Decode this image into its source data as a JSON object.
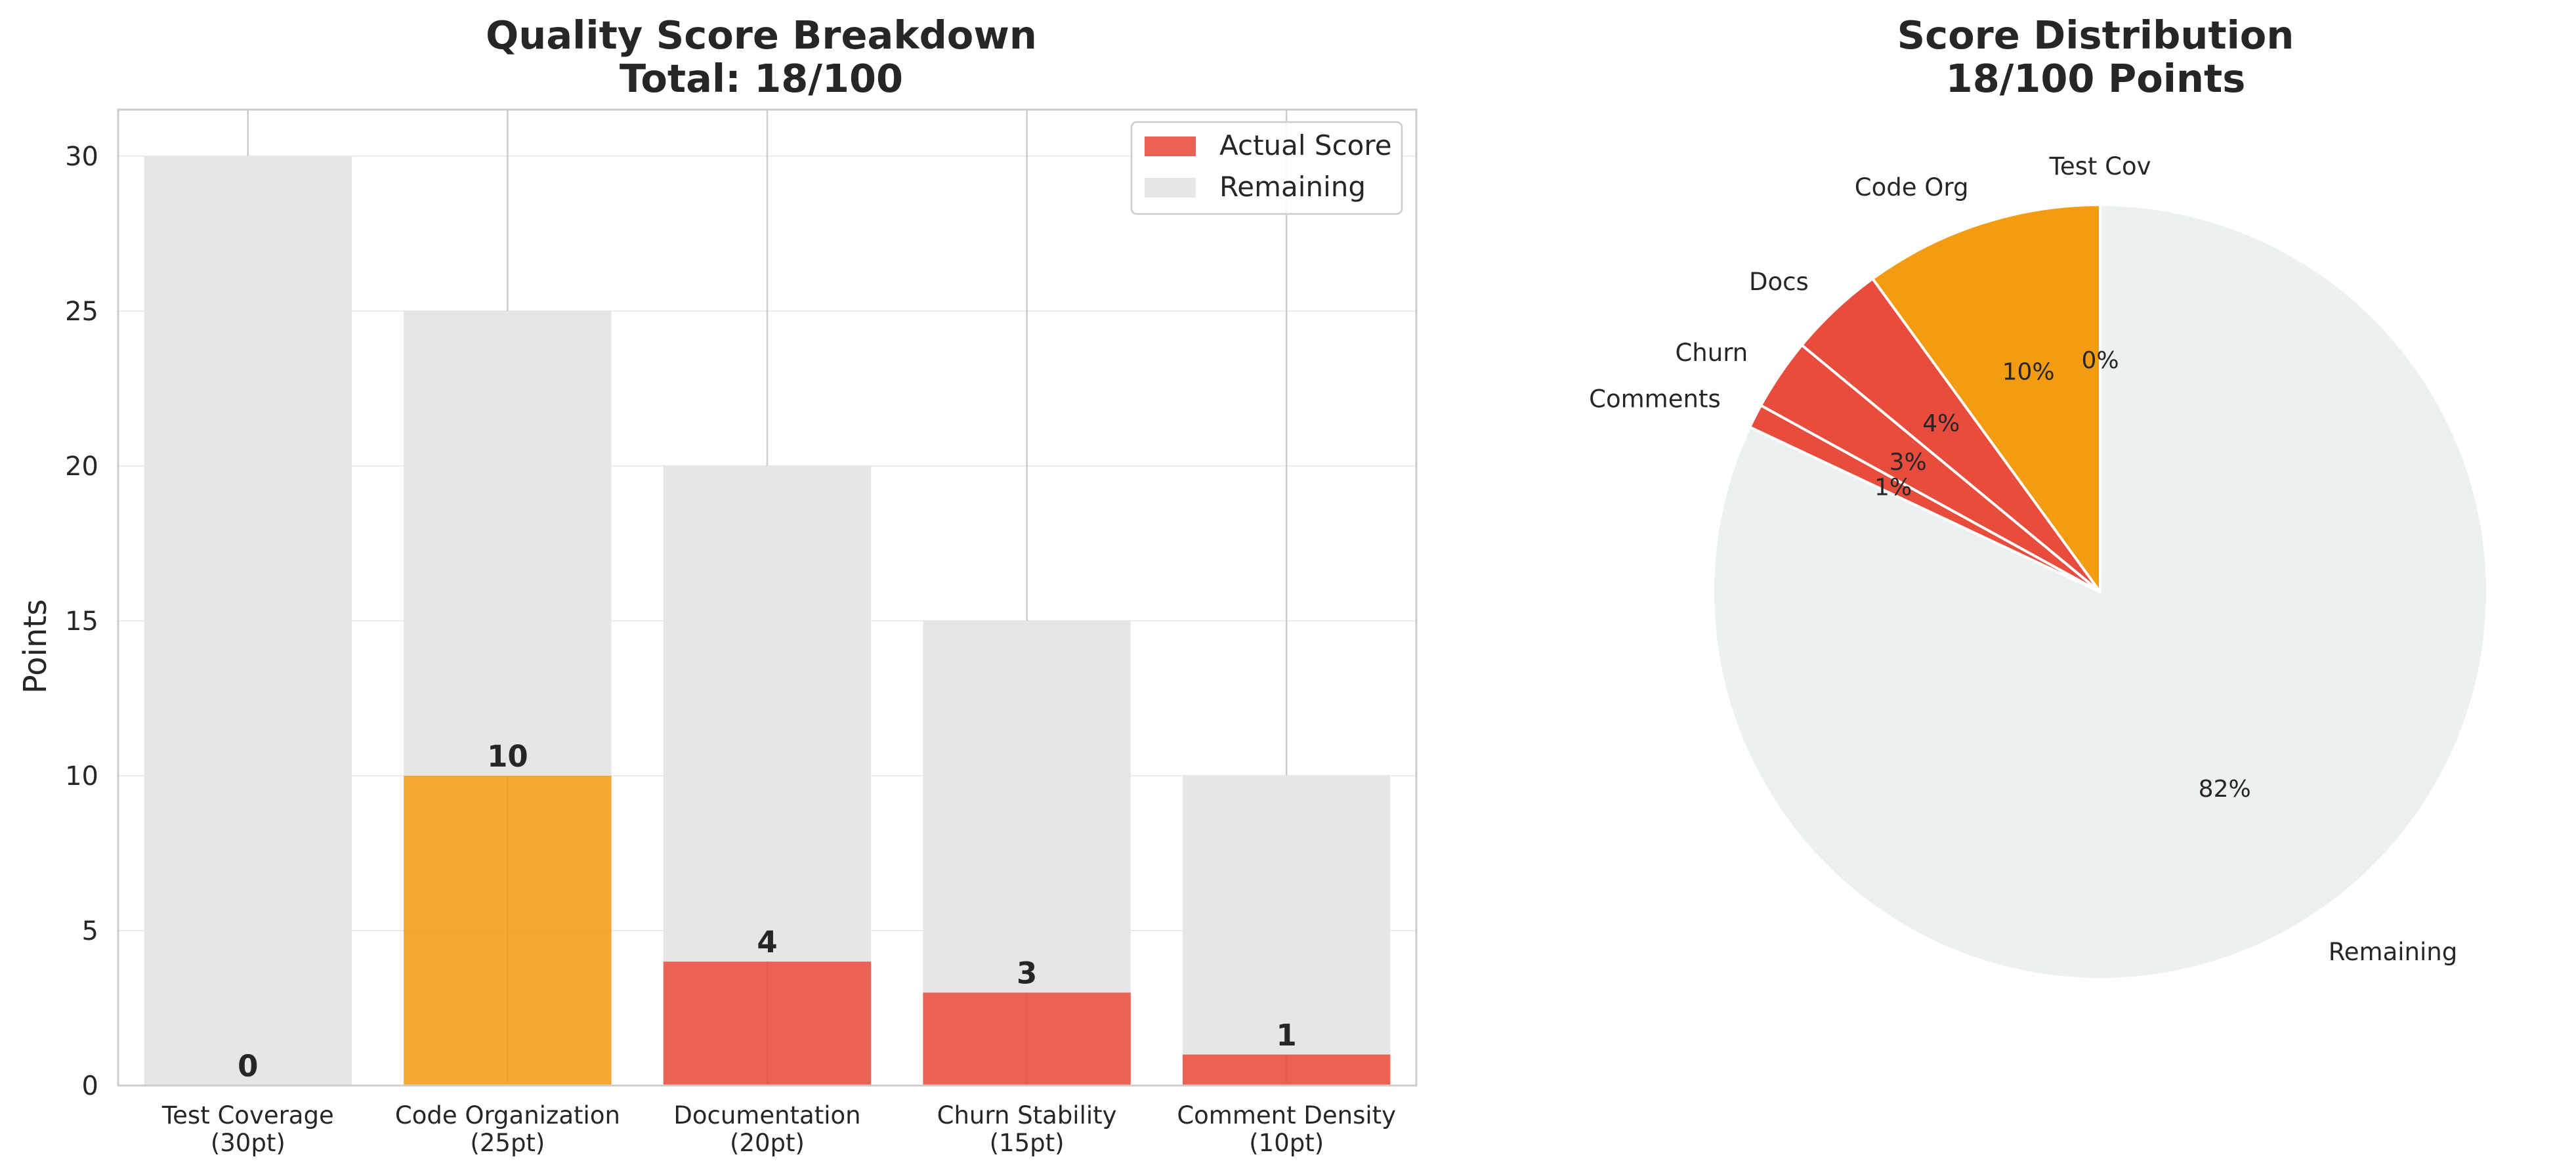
{
  "chart_data": [
    {
      "type": "bar",
      "title_line1": "Quality Score Breakdown",
      "title_line2": "Total: 18/100",
      "ylabel": "Points",
      "xlabel": "",
      "ylim": [
        0,
        31.5
      ],
      "yticks": [
        "0",
        "5",
        "10",
        "15",
        "20",
        "25",
        "30"
      ],
      "categories": [
        {
          "line1": "Test Coverage",
          "line2": "(30pt)"
        },
        {
          "line1": "Code Organization",
          "line2": "(25pt)"
        },
        {
          "line1": "Documentation",
          "line2": "(20pt)"
        },
        {
          "line1": "Churn Stability",
          "line2": "(15pt)"
        },
        {
          "line1": "Comment Density",
          "line2": "(10pt)"
        }
      ],
      "max_values": [
        30,
        25,
        20,
        15,
        10
      ],
      "values": [
        0,
        10,
        4,
        3,
        1
      ],
      "value_labels": [
        "0",
        "10",
        "4",
        "3",
        "1"
      ],
      "bar_colors": [
        "#e74c3c",
        "#f39c12",
        "#e74c3c",
        "#e74c3c",
        "#e74c3c"
      ],
      "remaining_color": "#e6e6e6",
      "legend": {
        "position": "top-right",
        "items": [
          {
            "label": "Actual Score",
            "color": "#e74c3c"
          },
          {
            "label": "Remaining",
            "color": "#e6e6e6"
          }
        ]
      },
      "grid": true
    },
    {
      "type": "pie",
      "title_line1": "Score Distribution",
      "title_line2": "18/100 Points",
      "start_angle": 90,
      "direction": "counterclockwise",
      "slices": [
        {
          "label": "Test Cov",
          "value": 0,
          "pct": "0%",
          "color": "#e74c3c"
        },
        {
          "label": "Code Org",
          "value": 10,
          "pct": "10%",
          "color": "#f39c12"
        },
        {
          "label": "Docs",
          "value": 4,
          "pct": "4%",
          "color": "#e74c3c"
        },
        {
          "label": "Churn",
          "value": 3,
          "pct": "3%",
          "color": "#e74c3c"
        },
        {
          "label": "Comments",
          "value": 1,
          "pct": "1%",
          "color": "#e74c3c"
        },
        {
          "label": "Remaining",
          "value": 82,
          "pct": "82%",
          "color": "#ecf0f1"
        }
      ]
    }
  ]
}
